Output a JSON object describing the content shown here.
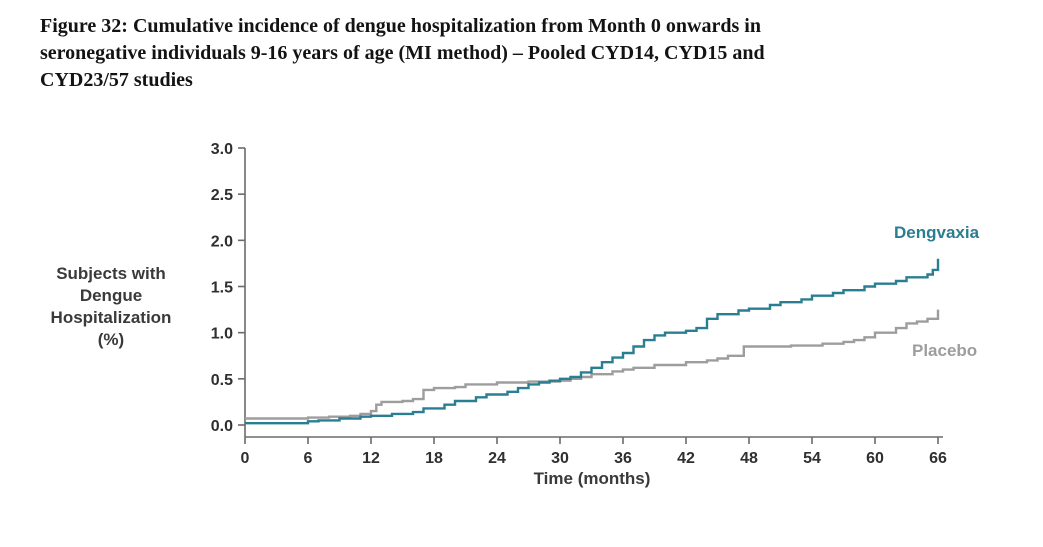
{
  "figure": {
    "title_lines": [
      "Figure 32: Cumulative incidence of dengue hospitalization from Month 0 onwards in",
      "seronegative individuals 9-16 years of age (MI method) – Pooled CYD14, CYD15 and",
      "CYD23/57 studies"
    ]
  },
  "chart_data": {
    "type": "line",
    "subtype": "step",
    "title": "Figure 32: Cumulative incidence of dengue hospitalization from Month 0 onwards in seronegative individuals 9-16 years of age (MI method) – Pooled CYD14, CYD15 and CYD23/57 studies",
    "xlabel": "Time (months)",
    "ylabel": "Subjects with\nDengue\nHospitalization\n(%)",
    "xlim": [
      0,
      66
    ],
    "ylim": [
      0,
      3.0
    ],
    "xticks": [
      0,
      6,
      12,
      18,
      24,
      30,
      36,
      42,
      48,
      54,
      60,
      66
    ],
    "yticks": [
      0.0,
      0.5,
      1.0,
      1.5,
      2.0,
      2.5,
      3.0
    ],
    "grid": false,
    "legend_position": "inline-right",
    "axis_color": "#6b6b6b",
    "tick_text_color": "#2f2f2f",
    "series": [
      {
        "name": "Placebo",
        "color": "#9d9d9d",
        "points": [
          [
            0,
            0.07
          ],
          [
            5,
            0.07
          ],
          [
            6,
            0.08
          ],
          [
            8,
            0.09
          ],
          [
            10,
            0.1
          ],
          [
            11,
            0.12
          ],
          [
            12,
            0.15
          ],
          [
            12.5,
            0.22
          ],
          [
            13,
            0.25
          ],
          [
            15,
            0.26
          ],
          [
            16,
            0.28
          ],
          [
            17,
            0.38
          ],
          [
            18,
            0.4
          ],
          [
            20,
            0.41
          ],
          [
            21,
            0.44
          ],
          [
            24,
            0.46
          ],
          [
            27,
            0.47
          ],
          [
            30,
            0.48
          ],
          [
            31,
            0.5
          ],
          [
            32,
            0.52
          ],
          [
            33,
            0.55
          ],
          [
            35,
            0.58
          ],
          [
            36,
            0.6
          ],
          [
            37,
            0.62
          ],
          [
            39,
            0.65
          ],
          [
            42,
            0.68
          ],
          [
            44,
            0.7
          ],
          [
            45,
            0.72
          ],
          [
            46,
            0.75
          ],
          [
            47.5,
            0.85
          ],
          [
            52,
            0.86
          ],
          [
            55,
            0.88
          ],
          [
            57,
            0.9
          ],
          [
            58,
            0.92
          ],
          [
            59,
            0.95
          ],
          [
            60,
            1.0
          ],
          [
            62,
            1.05
          ],
          [
            63,
            1.1
          ],
          [
            64,
            1.12
          ],
          [
            65,
            1.15
          ],
          [
            66,
            1.25
          ]
        ]
      },
      {
        "name": "Dengvaxia",
        "color": "#2a7e91",
        "points": [
          [
            0,
            0.02
          ],
          [
            5,
            0.02
          ],
          [
            6,
            0.04
          ],
          [
            7,
            0.05
          ],
          [
            9,
            0.07
          ],
          [
            11,
            0.09
          ],
          [
            12,
            0.1
          ],
          [
            14,
            0.12
          ],
          [
            16,
            0.14
          ],
          [
            17,
            0.18
          ],
          [
            19,
            0.22
          ],
          [
            20,
            0.26
          ],
          [
            22,
            0.3
          ],
          [
            23,
            0.33
          ],
          [
            25,
            0.36
          ],
          [
            26,
            0.4
          ],
          [
            27,
            0.44
          ],
          [
            28,
            0.46
          ],
          [
            29,
            0.48
          ],
          [
            30,
            0.5
          ],
          [
            31,
            0.52
          ],
          [
            32,
            0.57
          ],
          [
            33,
            0.62
          ],
          [
            34,
            0.68
          ],
          [
            35,
            0.73
          ],
          [
            36,
            0.78
          ],
          [
            37,
            0.85
          ],
          [
            38,
            0.92
          ],
          [
            39,
            0.97
          ],
          [
            40,
            1.0
          ],
          [
            42,
            1.02
          ],
          [
            43,
            1.05
          ],
          [
            44,
            1.15
          ],
          [
            45,
            1.2
          ],
          [
            47,
            1.24
          ],
          [
            48,
            1.26
          ],
          [
            50,
            1.3
          ],
          [
            51,
            1.33
          ],
          [
            53,
            1.36
          ],
          [
            54,
            1.4
          ],
          [
            56,
            1.43
          ],
          [
            57,
            1.46
          ],
          [
            59,
            1.5
          ],
          [
            60,
            1.53
          ],
          [
            62,
            1.56
          ],
          [
            63,
            1.6
          ],
          [
            65,
            1.63
          ],
          [
            65.5,
            1.68
          ],
          [
            66,
            1.8
          ]
        ]
      }
    ]
  }
}
